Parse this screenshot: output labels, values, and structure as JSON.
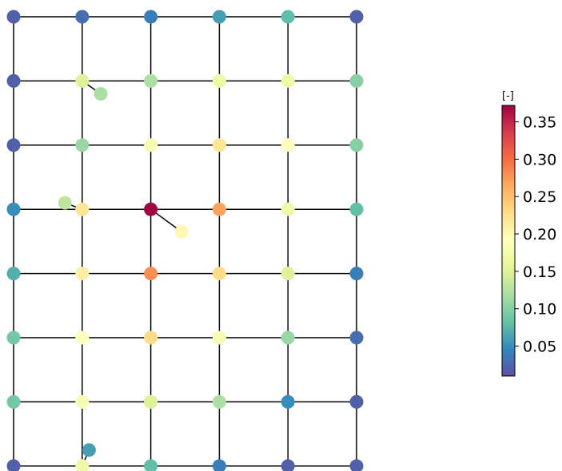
{
  "chart_data": {
    "type": "scatter",
    "description_kind": "network-graph",
    "grid": {
      "columns": 6,
      "rows": 8,
      "node_values": [
        [
          0.02,
          0.03,
          0.04,
          0.06,
          0.08,
          0.02
        ],
        [
          0.02,
          0.15,
          0.12,
          0.17,
          0.17,
          0.1
        ],
        [
          0.02,
          0.11,
          0.18,
          0.22,
          0.19,
          0.1
        ],
        [
          0.05,
          0.22,
          0.37,
          0.27,
          0.17,
          0.08
        ],
        [
          0.07,
          0.21,
          0.28,
          0.23,
          0.15,
          0.04
        ],
        [
          0.09,
          0.19,
          0.23,
          0.18,
          0.11,
          0.03
        ],
        [
          0.09,
          0.18,
          0.15,
          0.12,
          0.05,
          0.02
        ],
        [
          0.02,
          0.17,
          0.08,
          0.04,
          0.02,
          0.02
        ]
      ]
    },
    "extra_nodes": [
      {
        "attach_row": 1,
        "attach_col": 1,
        "dx": 0.27,
        "dy": 0.2,
        "value": 0.12
      },
      {
        "attach_row": 3,
        "attach_col": 1,
        "dx": -0.25,
        "dy": -0.1,
        "value": 0.13
      },
      {
        "attach_row": 3,
        "attach_col": 2,
        "dx": 0.45,
        "dy": 0.35,
        "value": 0.2
      },
      {
        "attach_row": 7,
        "attach_col": 1,
        "dx": 0.1,
        "dy": -0.25,
        "value": 0.06
      }
    ],
    "colorbar": {
      "label": "[-]",
      "vmin": 0.01,
      "vmax": 0.372,
      "ticks": [
        0.05,
        0.1,
        0.15,
        0.2,
        0.25,
        0.3,
        0.35
      ],
      "tick_labels": [
        "0.05",
        "0.10",
        "0.15",
        "0.20",
        "0.25",
        "0.30",
        "0.35"
      ],
      "colormap": "Spectral_r",
      "colormap_stops": [
        "#5e4fa2",
        "#3288bd",
        "#66c2a5",
        "#abdda4",
        "#e6f598",
        "#ffffbf",
        "#fee08b",
        "#fdae61",
        "#f46d43",
        "#d53e4f",
        "#9e0142"
      ]
    },
    "edge_color": "#000000"
  }
}
